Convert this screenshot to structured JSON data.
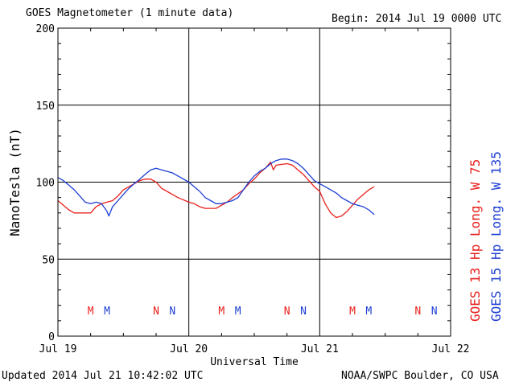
{
  "header": {
    "title": "GOES Magnetometer (1 minute data)",
    "begin": "Begin:  2014 Jul 19 0000 UTC"
  },
  "footer": {
    "updated": "Updated 2014 Jul 21 10:42:02 UTC",
    "credit": "NOAA/SWPC Boulder, CO USA"
  },
  "colors": {
    "goes13": "#e8211c",
    "goes15": "#1d3fd2",
    "grid": "#000000"
  },
  "chart_data": {
    "type": "line",
    "title": "GOES Magnetometer (1 minute data)",
    "xlabel": "Universal Time",
    "ylabel": "NanoTesla (nT)",
    "xlim": [
      "2014-07-19T00:00",
      "2014-07-22T00:00"
    ],
    "ylim": [
      0,
      200
    ],
    "yticks": [
      0,
      50,
      100,
      150,
      200
    ],
    "xticks": [
      {
        "t": "2014-07-19T00:00",
        "label": "Jul 19"
      },
      {
        "t": "2014-07-20T00:00",
        "label": "Jul 20"
      },
      {
        "t": "2014-07-21T00:00",
        "label": "Jul 21"
      },
      {
        "t": "2014-07-22T00:00",
        "label": "Jul 22"
      }
    ],
    "grid": true,
    "legend_placement": "right, vertical",
    "series": [
      {
        "name": "GOES 13 Hp  Long. W 75",
        "color": "#e8211c",
        "points": [
          [
            "2014-07-19T00:00",
            88
          ],
          [
            "2014-07-19T01:00",
            85
          ],
          [
            "2014-07-19T02:00",
            82
          ],
          [
            "2014-07-19T03:00",
            80
          ],
          [
            "2014-07-19T05:00",
            80
          ],
          [
            "2014-07-19T06:00",
            80
          ],
          [
            "2014-07-19T07:00",
            84
          ],
          [
            "2014-07-19T08:00",
            86
          ],
          [
            "2014-07-19T09:00",
            87
          ],
          [
            "2014-07-19T10:00",
            88
          ],
          [
            "2014-07-19T11:00",
            91
          ],
          [
            "2014-07-19T12:00",
            95
          ],
          [
            "2014-07-19T14:00",
            99
          ],
          [
            "2014-07-19T15:00",
            101
          ],
          [
            "2014-07-19T16:00",
            102
          ],
          [
            "2014-07-19T17:00",
            102
          ],
          [
            "2014-07-19T18:00",
            100
          ],
          [
            "2014-07-19T19:00",
            96
          ],
          [
            "2014-07-19T20:00",
            94
          ],
          [
            "2014-07-19T22:00",
            90
          ],
          [
            "2014-07-20T00:00",
            87
          ],
          [
            "2014-07-20T01:00",
            86
          ],
          [
            "2014-07-20T02:00",
            84
          ],
          [
            "2014-07-20T03:00",
            83
          ],
          [
            "2014-07-20T05:00",
            83
          ],
          [
            "2014-07-20T06:00",
            85
          ],
          [
            "2014-07-20T07:00",
            87
          ],
          [
            "2014-07-20T08:00",
            90
          ],
          [
            "2014-07-20T10:00",
            95
          ],
          [
            "2014-07-20T11:00",
            99
          ],
          [
            "2014-07-20T12:00",
            102
          ],
          [
            "2014-07-20T13:00",
            106
          ],
          [
            "2014-07-20T14:00",
            109
          ],
          [
            "2014-07-20T15:00",
            113
          ],
          [
            "2014-07-20T15:30",
            108
          ],
          [
            "2014-07-20T16:00",
            111
          ],
          [
            "2014-07-20T18:00",
            112
          ],
          [
            "2014-07-20T19:00",
            111
          ],
          [
            "2014-07-20T20:00",
            108
          ],
          [
            "2014-07-20T21:00",
            105
          ],
          [
            "2014-07-20T22:00",
            101
          ],
          [
            "2014-07-20T23:00",
            97
          ],
          [
            "2014-07-21T00:00",
            94
          ],
          [
            "2014-07-21T01:00",
            86
          ],
          [
            "2014-07-21T02:00",
            80
          ],
          [
            "2014-07-21T03:00",
            77
          ],
          [
            "2014-07-21T04:00",
            78
          ],
          [
            "2014-07-21T05:00",
            81
          ],
          [
            "2014-07-21T06:00",
            85
          ],
          [
            "2014-07-21T07:00",
            89
          ],
          [
            "2014-07-21T08:00",
            92
          ],
          [
            "2014-07-21T09:00",
            95
          ],
          [
            "2014-07-21T10:00",
            97
          ]
        ]
      },
      {
        "name": "GOES 15 Hp  Long. W 135",
        "color": "#1d3fd2",
        "points": [
          [
            "2014-07-19T00:00",
            103
          ],
          [
            "2014-07-19T01:00",
            101
          ],
          [
            "2014-07-19T02:00",
            98
          ],
          [
            "2014-07-19T03:00",
            95
          ],
          [
            "2014-07-19T04:00",
            91
          ],
          [
            "2014-07-19T05:00",
            87
          ],
          [
            "2014-07-19T06:00",
            86
          ],
          [
            "2014-07-19T07:00",
            87
          ],
          [
            "2014-07-19T08:00",
            86
          ],
          [
            "2014-07-19T09:00",
            81
          ],
          [
            "2014-07-19T09:20",
            78
          ],
          [
            "2014-07-19T10:00",
            84
          ],
          [
            "2014-07-19T11:00",
            88
          ],
          [
            "2014-07-19T12:00",
            92
          ],
          [
            "2014-07-19T13:00",
            96
          ],
          [
            "2014-07-19T14:00",
            99
          ],
          [
            "2014-07-19T15:00",
            102
          ],
          [
            "2014-07-19T16:00",
            105
          ],
          [
            "2014-07-19T17:00",
            108
          ],
          [
            "2014-07-19T18:00",
            109
          ],
          [
            "2014-07-19T19:00",
            108
          ],
          [
            "2014-07-19T20:00",
            107
          ],
          [
            "2014-07-19T21:00",
            106
          ],
          [
            "2014-07-19T22:00",
            104
          ],
          [
            "2014-07-20T00:00",
            100
          ],
          [
            "2014-07-20T01:00",
            97
          ],
          [
            "2014-07-20T02:00",
            94
          ],
          [
            "2014-07-20T03:00",
            90
          ],
          [
            "2014-07-20T04:00",
            88
          ],
          [
            "2014-07-20T05:00",
            86
          ],
          [
            "2014-07-20T06:00",
            86
          ],
          [
            "2014-07-20T07:00",
            87
          ],
          [
            "2014-07-20T08:00",
            88
          ],
          [
            "2014-07-20T09:00",
            90
          ],
          [
            "2014-07-20T10:00",
            95
          ],
          [
            "2014-07-20T11:00",
            100
          ],
          [
            "2014-07-20T12:00",
            104
          ],
          [
            "2014-07-20T13:00",
            107
          ],
          [
            "2014-07-20T14:00",
            109
          ],
          [
            "2014-07-20T15:00",
            112
          ],
          [
            "2014-07-20T16:00",
            114
          ],
          [
            "2014-07-20T17:00",
            115
          ],
          [
            "2014-07-20T18:00",
            115
          ],
          [
            "2014-07-20T19:00",
            114
          ],
          [
            "2014-07-20T20:00",
            112
          ],
          [
            "2014-07-20T21:00",
            109
          ],
          [
            "2014-07-20T22:00",
            105
          ],
          [
            "2014-07-20T23:00",
            101
          ],
          [
            "2014-07-21T00:00",
            99
          ],
          [
            "2014-07-21T01:00",
            97
          ],
          [
            "2014-07-21T02:00",
            95
          ],
          [
            "2014-07-21T03:00",
            93
          ],
          [
            "2014-07-21T04:00",
            90
          ],
          [
            "2014-07-21T05:00",
            88
          ],
          [
            "2014-07-21T06:00",
            86
          ],
          [
            "2014-07-21T07:00",
            85
          ],
          [
            "2014-07-21T08:00",
            84
          ],
          [
            "2014-07-21T09:00",
            82
          ],
          [
            "2014-07-21T10:00",
            79
          ]
        ]
      }
    ],
    "annotations": [
      {
        "t": "2014-07-19T06:00",
        "label": "M",
        "series": "GOES 13 Hp  Long. W 75"
      },
      {
        "t": "2014-07-19T09:00",
        "label": "M",
        "series": "GOES 15 Hp  Long. W 135"
      },
      {
        "t": "2014-07-19T18:00",
        "label": "N",
        "series": "GOES 13 Hp  Long. W 75"
      },
      {
        "t": "2014-07-19T21:00",
        "label": "N",
        "series": "GOES 15 Hp  Long. W 135"
      },
      {
        "t": "2014-07-20T06:00",
        "label": "M",
        "series": "GOES 13 Hp  Long. W 75"
      },
      {
        "t": "2014-07-20T09:00",
        "label": "M",
        "series": "GOES 15 Hp  Long. W 135"
      },
      {
        "t": "2014-07-20T18:00",
        "label": "N",
        "series": "GOES 13 Hp  Long. W 75"
      },
      {
        "t": "2014-07-20T21:00",
        "label": "N",
        "series": "GOES 15 Hp  Long. W 135"
      },
      {
        "t": "2014-07-21T06:00",
        "label": "M",
        "series": "GOES 13 Hp  Long. W 75"
      },
      {
        "t": "2014-07-21T09:00",
        "label": "M",
        "series": "GOES 15 Hp  Long. W 135"
      },
      {
        "t": "2014-07-21T18:00",
        "label": "N",
        "series": "GOES 13 Hp  Long. W 75"
      },
      {
        "t": "2014-07-21T21:00",
        "label": "N",
        "series": "GOES 15 Hp  Long. W 135"
      }
    ]
  }
}
